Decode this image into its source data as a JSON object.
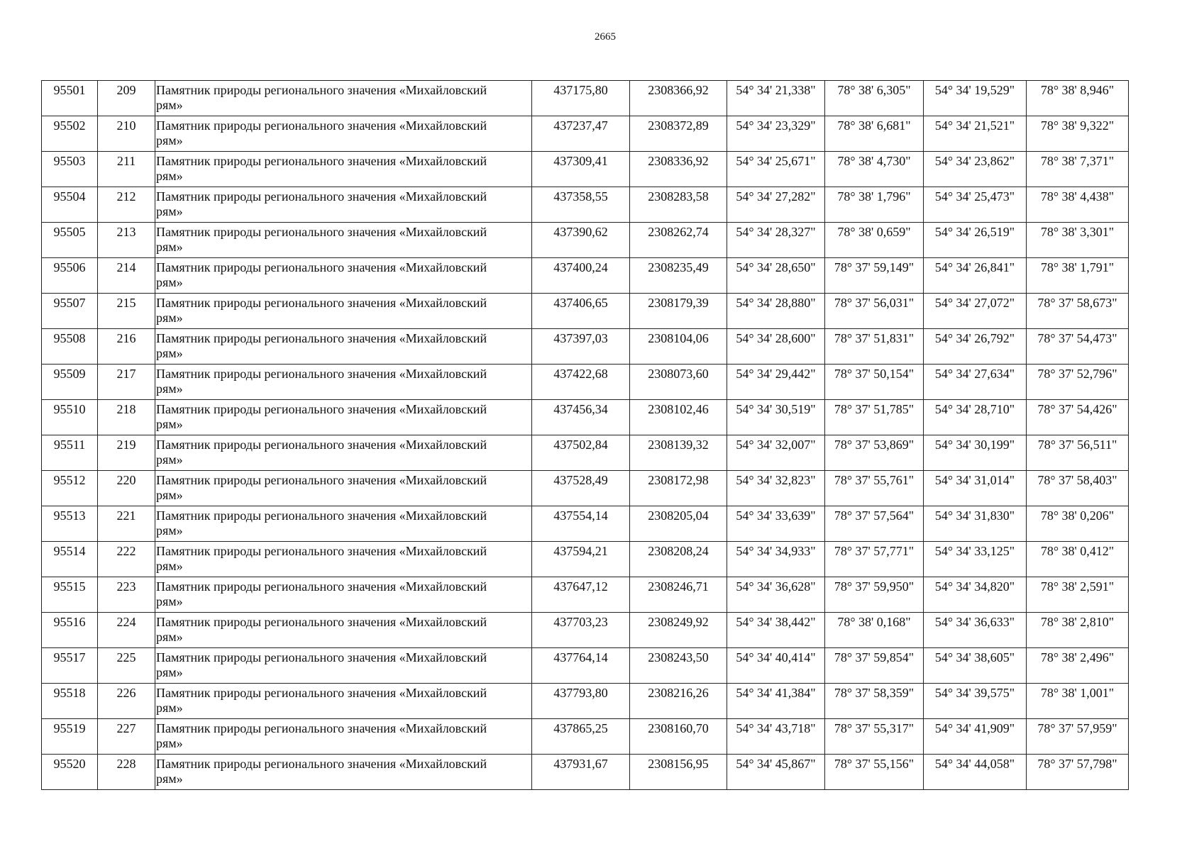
{
  "page_number": "2665",
  "rows": [
    [
      "95501",
      "209",
      "Памятник природы регионального значения «Михайловский рям»",
      "437175,80",
      "2308366,92",
      "54° 34' 21,338\"",
      "78° 38' 6,305\"",
      "54° 34' 19,529\"",
      "78° 38' 8,946\""
    ],
    [
      "95502",
      "210",
      "Памятник природы регионального значения «Михайловский рям»",
      "437237,47",
      "2308372,89",
      "54° 34' 23,329\"",
      "78° 38' 6,681\"",
      "54° 34' 21,521\"",
      "78° 38' 9,322\""
    ],
    [
      "95503",
      "211",
      "Памятник природы регионального значения «Михайловский рям»",
      "437309,41",
      "2308336,92",
      "54° 34' 25,671\"",
      "78° 38' 4,730\"",
      "54° 34' 23,862\"",
      "78° 38' 7,371\""
    ],
    [
      "95504",
      "212",
      "Памятник природы регионального значения «Михайловский рям»",
      "437358,55",
      "2308283,58",
      "54° 34' 27,282\"",
      "78° 38' 1,796\"",
      "54° 34' 25,473\"",
      "78° 38' 4,438\""
    ],
    [
      "95505",
      "213",
      "Памятник природы регионального значения «Михайловский рям»",
      "437390,62",
      "2308262,74",
      "54° 34' 28,327\"",
      "78° 38' 0,659\"",
      "54° 34' 26,519\"",
      "78° 38' 3,301\""
    ],
    [
      "95506",
      "214",
      "Памятник природы регионального значения «Михайловский рям»",
      "437400,24",
      "2308235,49",
      "54° 34' 28,650\"",
      "78° 37' 59,149\"",
      "54° 34' 26,841\"",
      "78° 38' 1,791\""
    ],
    [
      "95507",
      "215",
      "Памятник природы регионального значения «Михайловский рям»",
      "437406,65",
      "2308179,39",
      "54° 34' 28,880\"",
      "78° 37' 56,031\"",
      "54° 34' 27,072\"",
      "78° 37' 58,673\""
    ],
    [
      "95508",
      "216",
      "Памятник природы регионального значения «Михайловский рям»",
      "437397,03",
      "2308104,06",
      "54° 34' 28,600\"",
      "78° 37' 51,831\"",
      "54° 34' 26,792\"",
      "78° 37' 54,473\""
    ],
    [
      "95509",
      "217",
      "Памятник природы регионального значения «Михайловский рям»",
      "437422,68",
      "2308073,60",
      "54° 34' 29,442\"",
      "78° 37' 50,154\"",
      "54° 34' 27,634\"",
      "78° 37' 52,796\""
    ],
    [
      "95510",
      "218",
      "Памятник природы регионального значения «Михайловский рям»",
      "437456,34",
      "2308102,46",
      "54° 34' 30,519\"",
      "78° 37' 51,785\"",
      "54° 34' 28,710\"",
      "78° 37' 54,426\""
    ],
    [
      "95511",
      "219",
      "Памятник природы регионального значения «Михайловский рям»",
      "437502,84",
      "2308139,32",
      "54° 34' 32,007\"",
      "78° 37' 53,869\"",
      "54° 34' 30,199\"",
      "78° 37' 56,511\""
    ],
    [
      "95512",
      "220",
      "Памятник природы регионального значения «Михайловский рям»",
      "437528,49",
      "2308172,98",
      "54° 34' 32,823\"",
      "78° 37' 55,761\"",
      "54° 34' 31,014\"",
      "78° 37' 58,403\""
    ],
    [
      "95513",
      "221",
      "Памятник природы регионального значения «Михайловский рям»",
      "437554,14",
      "2308205,04",
      "54° 34' 33,639\"",
      "78° 37' 57,564\"",
      "54° 34' 31,830\"",
      "78° 38' 0,206\""
    ],
    [
      "95514",
      "222",
      "Памятник природы регионального значения «Михайловский рям»",
      "437594,21",
      "2308208,24",
      "54° 34' 34,933\"",
      "78° 37' 57,771\"",
      "54° 34' 33,125\"",
      "78° 38' 0,412\""
    ],
    [
      "95515",
      "223",
      "Памятник природы регионального значения «Михайловский рям»",
      "437647,12",
      "2308246,71",
      "54° 34' 36,628\"",
      "78° 37' 59,950\"",
      "54° 34' 34,820\"",
      "78° 38' 2,591\""
    ],
    [
      "95516",
      "224",
      "Памятник природы регионального значения «Михайловский рям»",
      "437703,23",
      "2308249,92",
      "54° 34' 38,442\"",
      "78° 38' 0,168\"",
      "54° 34' 36,633\"",
      "78° 38' 2,810\""
    ],
    [
      "95517",
      "225",
      "Памятник природы регионального значения «Михайловский рям»",
      "437764,14",
      "2308243,50",
      "54° 34' 40,414\"",
      "78° 37' 59,854\"",
      "54° 34' 38,605\"",
      "78° 38' 2,496\""
    ],
    [
      "95518",
      "226",
      "Памятник природы регионального значения «Михайловский рям»",
      "437793,80",
      "2308216,26",
      "54° 34' 41,384\"",
      "78° 37' 58,359\"",
      "54° 34' 39,575\"",
      "78° 38' 1,001\""
    ],
    [
      "95519",
      "227",
      "Памятник природы регионального значения «Михайловский рям»",
      "437865,25",
      "2308160,70",
      "54° 34' 43,718\"",
      "78° 37' 55,317\"",
      "54° 34' 41,909\"",
      "78° 37' 57,959\""
    ],
    [
      "95520",
      "228",
      "Памятник природы регионального значения «Михайловский рям»",
      "437931,67",
      "2308156,95",
      "54° 34' 45,867\"",
      "78° 37' 55,156\"",
      "54° 34' 44,058\"",
      "78° 37' 57,798\""
    ]
  ]
}
